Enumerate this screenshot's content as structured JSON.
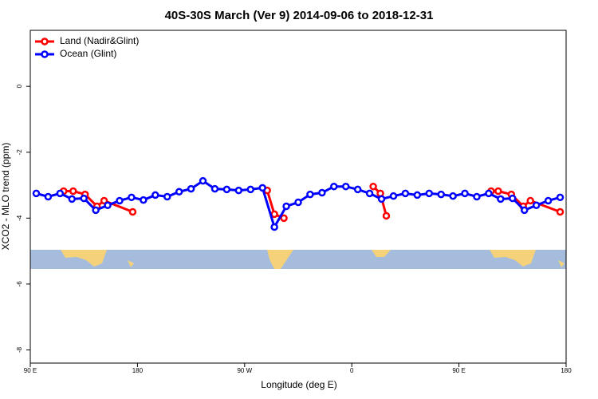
{
  "chart_data": {
    "type": "line",
    "title": "40S-30S March (Ver 9)   2014-09-06 to 2018-12-31",
    "x_label": "Longitude (deg E)",
    "y_label": "XCO2 - MLO trend (ppm)",
    "xlim": [
      90,
      540
    ],
    "ylim": [
      -8.4,
      1.7
    ],
    "xticks": [
      {
        "value": 90,
        "label": "90 E"
      },
      180,
      {
        "value": 270,
        "label": "90 W"
      },
      {
        "value": 360,
        "label": "0"
      },
      {
        "value": 450,
        "label": "90 E"
      },
      {
        "value": 540,
        "label": "180"
      }
    ],
    "yticks": [
      -8,
      -6,
      -4,
      -2,
      0
    ],
    "legend": "top-left",
    "series": [
      {
        "name": "Land (Nadir&Glint)",
        "color": "#ff0000",
        "x": [
          118,
          126,
          136,
          146,
          152,
          176,
          null,
          289,
          295,
          303,
          null,
          378,
          384,
          389,
          null,
          477,
          483,
          494,
          504,
          510,
          535
        ],
        "values": [
          -3.18,
          -3.18,
          -3.28,
          -3.64,
          -3.47,
          -3.81,
          null,
          -3.16,
          -3.88,
          -4.0,
          null,
          -3.04,
          -3.25,
          -3.93,
          null,
          -3.18,
          -3.18,
          -3.28,
          -3.64,
          -3.47,
          -3.81
        ]
      },
      {
        "name": "Ocean (Glint)",
        "color": "#0000ff",
        "x": [
          95,
          105,
          115,
          125,
          135,
          145,
          155,
          165,
          175,
          185,
          195,
          205,
          215,
          225,
          235,
          245,
          255,
          265,
          275,
          285,
          295,
          305,
          315,
          325,
          335,
          345,
          355,
          365,
          375,
          385,
          395,
          405,
          415,
          425,
          435,
          445,
          455,
          465,
          475,
          485,
          495,
          505,
          515,
          525,
          535
        ],
        "values": [
          -3.25,
          -3.35,
          -3.25,
          -3.42,
          -3.4,
          -3.76,
          -3.61,
          -3.47,
          -3.37,
          -3.45,
          -3.3,
          -3.35,
          -3.2,
          -3.11,
          -2.87,
          -3.11,
          -3.13,
          -3.16,
          -3.13,
          -3.08,
          -4.27,
          -3.64,
          -3.52,
          -3.28,
          -3.23,
          -3.04,
          -3.04,
          -3.13,
          -3.25,
          -3.42,
          -3.33,
          -3.25,
          -3.3,
          -3.25,
          -3.28,
          -3.33,
          -3.25,
          -3.35,
          -3.25,
          -3.42,
          -3.4,
          -3.76,
          -3.61,
          -3.47,
          -3.37
        ]
      }
    ]
  }
}
